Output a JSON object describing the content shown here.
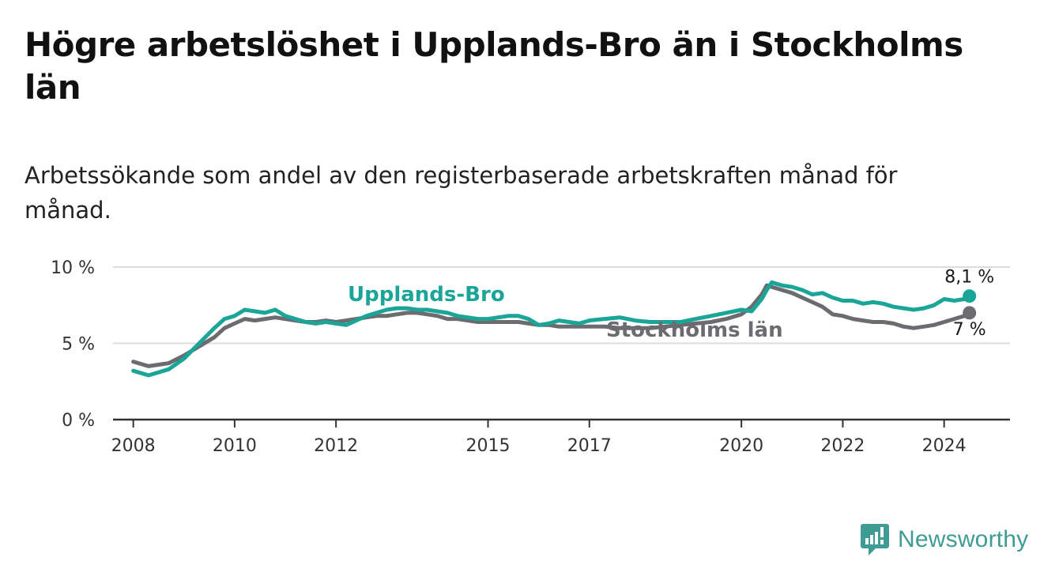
{
  "title": "Högre arbetslöshet i Upplands-Bro än i Stockholms län",
  "subtitle": "Arbetssökande som andel av den registerbaserade arbetskraften månad för månad.",
  "brand": {
    "name": "Newsworthy",
    "icon": "newsworthy-logo-icon",
    "color": "#3e9c95"
  },
  "chart_data": {
    "type": "line",
    "title": "Högre arbetslöshet i Upplands-Bro än i Stockholms län",
    "xlabel": "",
    "ylabel": "",
    "xlim": [
      2007.6,
      2025.3
    ],
    "ylim": [
      0,
      10
    ],
    "grid": true,
    "yticks": [
      {
        "value": 0,
        "label": "0 %"
      },
      {
        "value": 5,
        "label": "5 %"
      },
      {
        "value": 10,
        "label": "10 %"
      }
    ],
    "xticks": [
      {
        "value": 2008,
        "label": "2008"
      },
      {
        "value": 2010,
        "label": "2010"
      },
      {
        "value": 2012,
        "label": "2012"
      },
      {
        "value": 2015,
        "label": "2015"
      },
      {
        "value": 2017,
        "label": "2017"
      },
      {
        "value": 2020,
        "label": "2020"
      },
      {
        "value": 2022,
        "label": "2022"
      },
      {
        "value": 2024,
        "label": "2024"
      }
    ],
    "series": [
      {
        "name": "Stockholms län",
        "color": "#6b6b70",
        "end_label": "7 %",
        "x": [
          2008.0,
          2008.3,
          2008.5,
          2008.7,
          2009.0,
          2009.3,
          2009.6,
          2009.8,
          2010.0,
          2010.2,
          2010.4,
          2010.6,
          2010.8,
          2011.0,
          2011.2,
          2011.4,
          2011.6,
          2011.8,
          2012.0,
          2012.2,
          2012.4,
          2012.6,
          2012.8,
          2013.0,
          2013.2,
          2013.4,
          2013.6,
          2013.8,
          2014.0,
          2014.2,
          2014.4,
          2014.6,
          2014.8,
          2015.0,
          2015.2,
          2015.4,
          2015.6,
          2015.8,
          2016.0,
          2016.2,
          2016.4,
          2016.6,
          2016.8,
          2017.0,
          2017.3,
          2017.6,
          2017.9,
          2018.2,
          2018.5,
          2018.8,
          2019.1,
          2019.4,
          2019.7,
          2020.0,
          2020.2,
          2020.4,
          2020.5,
          2020.6,
          2020.8,
          2021.0,
          2021.2,
          2021.4,
          2021.6,
          2021.8,
          2022.0,
          2022.2,
          2022.4,
          2022.6,
          2022.8,
          2023.0,
          2023.2,
          2023.4,
          2023.6,
          2023.8,
          2024.0,
          2024.2,
          2024.4,
          2024.5
        ],
        "values": [
          3.8,
          3.5,
          3.6,
          3.7,
          4.2,
          4.8,
          5.4,
          6.0,
          6.3,
          6.6,
          6.5,
          6.6,
          6.7,
          6.6,
          6.5,
          6.4,
          6.4,
          6.5,
          6.4,
          6.5,
          6.6,
          6.7,
          6.8,
          6.8,
          6.9,
          7.0,
          7.0,
          6.9,
          6.8,
          6.6,
          6.6,
          6.5,
          6.4,
          6.4,
          6.4,
          6.4,
          6.4,
          6.3,
          6.2,
          6.2,
          6.1,
          6.1,
          6.1,
          6.1,
          6.1,
          6.0,
          6.0,
          6.0,
          6.1,
          6.2,
          6.3,
          6.4,
          6.6,
          6.9,
          7.4,
          8.2,
          8.8,
          8.7,
          8.5,
          8.3,
          8.0,
          7.7,
          7.4,
          6.9,
          6.8,
          6.6,
          6.5,
          6.4,
          6.4,
          6.3,
          6.1,
          6.0,
          6.1,
          6.2,
          6.4,
          6.6,
          6.8,
          7.0
        ]
      },
      {
        "name": "Upplands-Bro",
        "color": "#1aa598",
        "end_label": "8,1 %",
        "x": [
          2008.0,
          2008.3,
          2008.5,
          2008.7,
          2009.0,
          2009.3,
          2009.6,
          2009.8,
          2010.0,
          2010.2,
          2010.4,
          2010.6,
          2010.8,
          2011.0,
          2011.2,
          2011.4,
          2011.6,
          2011.8,
          2012.0,
          2012.2,
          2012.4,
          2012.6,
          2012.8,
          2013.0,
          2013.2,
          2013.4,
          2013.6,
          2013.8,
          2014.0,
          2014.2,
          2014.4,
          2014.6,
          2014.8,
          2015.0,
          2015.2,
          2015.4,
          2015.6,
          2015.8,
          2016.0,
          2016.2,
          2016.4,
          2016.6,
          2016.8,
          2017.0,
          2017.3,
          2017.6,
          2017.9,
          2018.2,
          2018.5,
          2018.8,
          2019.1,
          2019.4,
          2019.7,
          2020.0,
          2020.2,
          2020.4,
          2020.5,
          2020.6,
          2020.8,
          2021.0,
          2021.2,
          2021.4,
          2021.6,
          2021.8,
          2022.0,
          2022.2,
          2022.4,
          2022.6,
          2022.8,
          2023.0,
          2023.2,
          2023.4,
          2023.6,
          2023.8,
          2024.0,
          2024.2,
          2024.4,
          2024.5
        ],
        "values": [
          3.2,
          2.9,
          3.1,
          3.3,
          4.0,
          5.0,
          6.0,
          6.6,
          6.8,
          7.2,
          7.1,
          7.0,
          7.2,
          6.8,
          6.6,
          6.4,
          6.3,
          6.4,
          6.3,
          6.2,
          6.5,
          6.8,
          7.0,
          7.2,
          7.3,
          7.3,
          7.2,
          7.2,
          7.1,
          7.0,
          6.8,
          6.7,
          6.6,
          6.6,
          6.7,
          6.8,
          6.8,
          6.6,
          6.2,
          6.3,
          6.5,
          6.4,
          6.3,
          6.5,
          6.6,
          6.7,
          6.5,
          6.4,
          6.4,
          6.4,
          6.6,
          6.8,
          7.0,
          7.2,
          7.1,
          7.9,
          8.5,
          9.0,
          8.8,
          8.7,
          8.5,
          8.2,
          8.3,
          8.0,
          7.8,
          7.8,
          7.6,
          7.7,
          7.6,
          7.4,
          7.3,
          7.2,
          7.3,
          7.5,
          7.9,
          7.8,
          7.9,
          8.1
        ]
      }
    ]
  }
}
